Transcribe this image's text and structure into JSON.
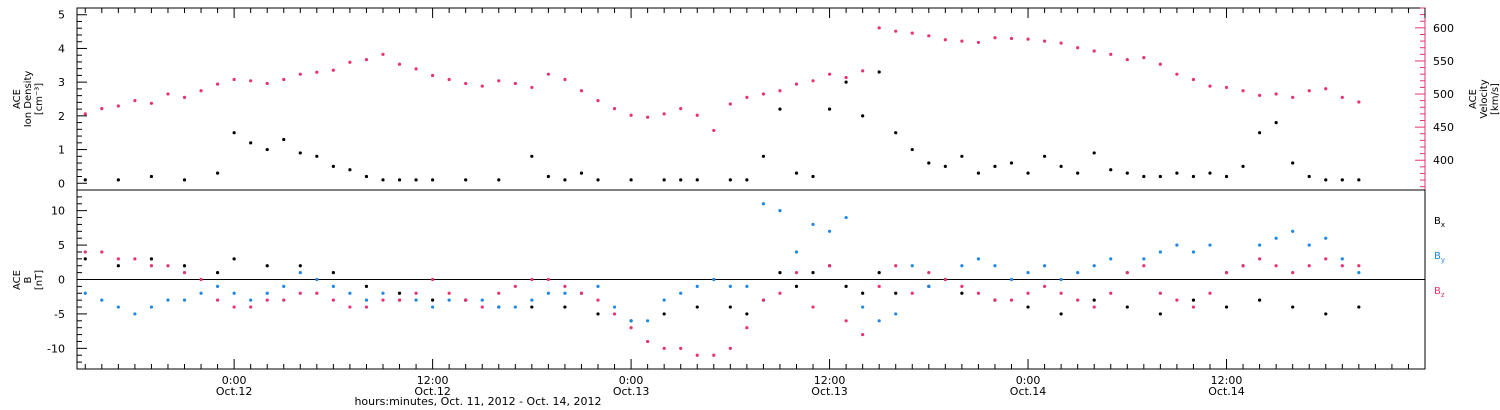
{
  "chart_data": [
    {
      "type": "scatter",
      "panel": "top",
      "ylabel_lines": [
        "ACE",
        "Ion Density",
        "[cm⁻³]"
      ],
      "ylim": [
        -0.2,
        5.2
      ],
      "yticks": [
        0,
        1,
        2,
        3,
        4,
        5
      ],
      "y2label_lines": [
        "ACE",
        "Velocity",
        "[km/s]"
      ],
      "y2lim": [
        355,
        630
      ],
      "y2ticks": [
        400,
        450,
        500,
        550,
        600
      ],
      "y2_color": "#e8336b",
      "xlim_hours": [
        -9.5,
        72
      ],
      "series": [
        {
          "axis": "y",
          "color": "#000000",
          "x": [
            -9,
            -7,
            -5,
            -3,
            -1,
            0,
            1,
            2,
            3,
            4,
            5,
            6,
            7,
            8,
            9,
            10,
            11,
            12,
            14,
            16,
            18,
            19,
            20,
            21,
            22,
            24,
            26,
            27,
            28,
            30,
            31,
            32,
            33,
            34,
            35,
            36,
            37,
            38,
            39,
            40,
            41,
            42,
            43,
            44,
            45,
            46,
            47,
            48,
            49,
            50,
            51,
            52,
            53,
            54,
            55,
            56,
            57,
            58,
            59,
            60,
            61,
            62,
            63,
            64,
            65,
            66,
            67,
            68
          ],
          "y": [
            0.1,
            0.1,
            0.2,
            0.1,
            0.3,
            1.5,
            1.2,
            1.0,
            1.3,
            0.9,
            0.8,
            0.5,
            0.4,
            0.2,
            0.1,
            0.1,
            0.1,
            0.1,
            0.1,
            0.1,
            0.8,
            0.2,
            0.1,
            0.3,
            0.1,
            0.1,
            0.1,
            0.1,
            0.1,
            0.1,
            0.1,
            0.8,
            2.2,
            0.3,
            0.2,
            2.2,
            3.0,
            2.0,
            3.3,
            1.5,
            1.0,
            0.6,
            0.5,
            0.8,
            0.3,
            0.5,
            0.6,
            0.3,
            0.8,
            0.5,
            0.3,
            0.9,
            0.4,
            0.3,
            0.2,
            0.2,
            0.3,
            0.2,
            0.3,
            0.2,
            0.5,
            1.5,
            1.8,
            0.6,
            0.2,
            0.1,
            0.1,
            0.1
          ]
        },
        {
          "axis": "y2",
          "color": "#e8336b",
          "x": [
            -9,
            -8,
            -7,
            -6,
            -5,
            -4,
            -3,
            -2,
            -1,
            0,
            1,
            2,
            3,
            4,
            5,
            6,
            7,
            8,
            9,
            10,
            11,
            12,
            13,
            14,
            15,
            16,
            17,
            18,
            19,
            20,
            21,
            22,
            23,
            24,
            25,
            26,
            27,
            28,
            29,
            30,
            31,
            32,
            33,
            34,
            35,
            36,
            37,
            38,
            39,
            40,
            41,
            42,
            43,
            44,
            45,
            46,
            47,
            48,
            49,
            50,
            51,
            52,
            53,
            54,
            55,
            56,
            57,
            58,
            59,
            60,
            61,
            62,
            63,
            64,
            65,
            66,
            67,
            68
          ],
          "y": [
            470,
            478,
            482,
            490,
            486,
            500,
            495,
            505,
            515,
            522,
            520,
            516,
            522,
            530,
            533,
            536,
            548,
            552,
            560,
            545,
            538,
            528,
            522,
            516,
            512,
            520,
            516,
            510,
            530,
            522,
            505,
            490,
            478,
            468,
            465,
            470,
            478,
            468,
            445,
            485,
            495,
            500,
            505,
            515,
            520,
            530,
            525,
            535,
            600,
            595,
            592,
            588,
            582,
            580,
            578,
            585,
            584,
            583,
            580,
            577,
            570,
            565,
            560,
            552,
            555,
            545,
            530,
            522,
            512,
            510,
            505,
            498,
            500,
            495,
            505,
            508,
            495,
            488
          ]
        }
      ]
    },
    {
      "type": "scatter",
      "panel": "bottom",
      "ylabel_lines": [
        "ACE",
        "B",
        "[nT]"
      ],
      "ylim": [
        -13,
        13
      ],
      "yticks": [
        -10,
        -5,
        0,
        5,
        10
      ],
      "zero_line": true,
      "xlim_hours": [
        -9.5,
        72
      ],
      "xticks_hours": [
        0,
        12,
        24,
        36,
        48,
        60
      ],
      "xtick_labels": [
        [
          "0:00",
          "Oct.12"
        ],
        [
          "12:00",
          "Oct.12"
        ],
        [
          "0:00",
          "Oct.13"
        ],
        [
          "12:00",
          "Oct.13"
        ],
        [
          "0:00",
          "Oct.14"
        ],
        [
          "12:00",
          "Oct.14"
        ]
      ],
      "xlabel": "hours:minutes, Oct. 11, 2012 - Oct. 14, 2012",
      "legend": [
        {
          "base": "B",
          "sub": "x",
          "color": "#000000"
        },
        {
          "base": "B",
          "sub": "y",
          "color": "#1e88e5"
        },
        {
          "base": "B",
          "sub": "z",
          "color": "#e8336b"
        }
      ],
      "series": [
        {
          "name": "Bx",
          "color": "#000000",
          "x": [
            -9,
            -7,
            -5,
            -3,
            -1,
            0,
            2,
            4,
            6,
            8,
            10,
            12,
            14,
            16,
            18,
            20,
            22,
            24,
            26,
            28,
            30,
            31,
            32,
            33,
            34,
            35,
            36,
            37,
            38,
            39,
            40,
            42,
            44,
            46,
            48,
            50,
            52,
            54,
            56,
            58,
            60,
            62,
            64,
            66,
            68
          ],
          "y": [
            3,
            2,
            3,
            2,
            1,
            3,
            2,
            2,
            1,
            -1,
            -2,
            -3,
            -3,
            -4,
            -4,
            -4,
            -5,
            -6,
            -5,
            -4,
            -4,
            -5,
            -3,
            1,
            -1,
            1,
            2,
            -1,
            -2,
            1,
            -2,
            -1,
            -2,
            -3,
            -4,
            -5,
            -3,
            -4,
            -5,
            -3,
            -4,
            -3,
            -4,
            -5,
            -4
          ]
        },
        {
          "name": "By",
          "color": "#1e88e5",
          "x": [
            -9,
            -8,
            -7,
            -6,
            -5,
            -4,
            -3,
            -2,
            -1,
            0,
            1,
            2,
            3,
            4,
            5,
            6,
            7,
            8,
            9,
            10,
            11,
            12,
            13,
            14,
            15,
            16,
            17,
            18,
            19,
            20,
            21,
            22,
            23,
            24,
            25,
            26,
            27,
            28,
            29,
            30,
            31,
            32,
            33,
            34,
            35,
            36,
            37,
            38,
            39,
            40,
            41,
            42,
            43,
            44,
            45,
            46,
            47,
            48,
            49,
            50,
            51,
            52,
            53,
            54,
            55,
            56,
            57,
            58,
            59,
            60,
            61,
            62,
            63,
            64,
            65,
            66,
            67,
            68
          ],
          "y": [
            -2,
            -3,
            -4,
            -5,
            -4,
            -3,
            -3,
            -2,
            -1,
            -2,
            -3,
            -2,
            -1,
            1,
            0,
            -1,
            -2,
            -3,
            -2,
            -3,
            -3,
            -4,
            -3,
            -3,
            -3,
            -4,
            -4,
            -3,
            -2,
            -2,
            -2,
            -1,
            -4,
            -6,
            -6,
            -3,
            -2,
            -1,
            0,
            -1,
            -1,
            11,
            10,
            4,
            8,
            7,
            9,
            -4,
            -6,
            -5,
            2,
            -1,
            0,
            2,
            3,
            2,
            0,
            1,
            2,
            0,
            1,
            2,
            3,
            1,
            3,
            4,
            5,
            4,
            5,
            1,
            2,
            5,
            6,
            7,
            5,
            6,
            3,
            1
          ]
        },
        {
          "name": "Bz",
          "color": "#e8336b",
          "x": [
            -9,
            -8,
            -7,
            -6,
            -5,
            -4,
            -3,
            -2,
            -1,
            0,
            1,
            2,
            3,
            4,
            5,
            6,
            7,
            8,
            9,
            10,
            11,
            12,
            13,
            14,
            15,
            16,
            17,
            18,
            19,
            20,
            21,
            22,
            23,
            24,
            25,
            26,
            27,
            28,
            29,
            30,
            31,
            32,
            33,
            34,
            35,
            36,
            37,
            38,
            39,
            40,
            41,
            42,
            43,
            44,
            45,
            46,
            47,
            48,
            49,
            50,
            51,
            52,
            53,
            54,
            55,
            56,
            57,
            58,
            59,
            60,
            61,
            62,
            63,
            64,
            65,
            66,
            67,
            68
          ],
          "y": [
            4,
            4,
            3,
            3,
            2,
            2,
            1,
            0,
            -3,
            -4,
            -4,
            -3,
            -3,
            -2,
            -2,
            -3,
            -4,
            -4,
            -3,
            -3,
            -2,
            0,
            -2,
            -3,
            -4,
            -2,
            -1,
            0,
            0,
            -1,
            -2,
            -3,
            -5,
            -7,
            -9,
            -10,
            -10,
            -11,
            -11,
            -10,
            -7,
            -3,
            -2,
            1,
            -4,
            2,
            -6,
            -8,
            -1,
            2,
            -2,
            1,
            0,
            -1,
            -2,
            -3,
            -3,
            -2,
            -1,
            -2,
            -3,
            -4,
            -2,
            1,
            2,
            -2,
            -3,
            -4,
            -2,
            1,
            2,
            3,
            2,
            1,
            2,
            3,
            2,
            2
          ]
        }
      ]
    }
  ]
}
